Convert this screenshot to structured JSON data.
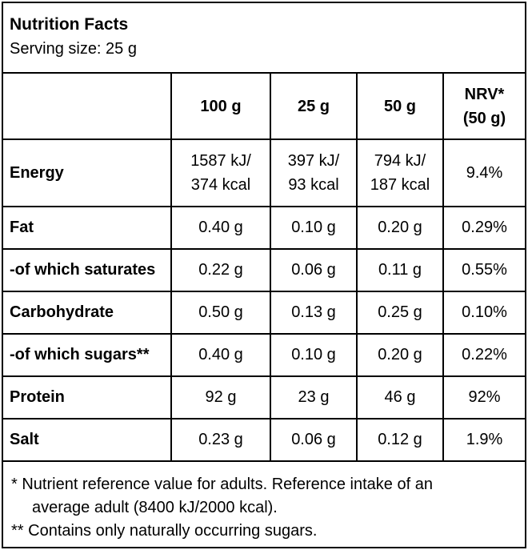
{
  "header": {
    "title": "Nutrition Facts",
    "serving": "Serving size: 25 g"
  },
  "columns": {
    "c1": "100 g",
    "c2": "25 g",
    "c3": "50 g",
    "nrv_line1": "NRV*",
    "nrv_line2": "(50 g)"
  },
  "energy": {
    "label": "Energy",
    "v100_kj": "1587 kJ/",
    "v100_kcal": "374 kcal",
    "v25_kj": "397 kJ/",
    "v25_kcal": "93 kcal",
    "v50_kj": "794 kJ/",
    "v50_kcal": "187 kcal",
    "nrv": "9.4%"
  },
  "rows": {
    "fat": {
      "label": "Fat",
      "v100": "0.40 g",
      "v25": "0.10 g",
      "v50": "0.20 g",
      "nrv": "0.29%"
    },
    "saturates": {
      "label": "-of which saturates",
      "v100": "0.22 g",
      "v25": "0.06 g",
      "v50": "0.11 g",
      "nrv": "0.55%"
    },
    "carbohydrate": {
      "label": "Carbohydrate",
      "v100": "0.50 g",
      "v25": "0.13 g",
      "v50": "0.25 g",
      "nrv": "0.10%"
    },
    "sugars": {
      "label": "-of which sugars**",
      "v100": "0.40 g",
      "v25": "0.10 g",
      "v50": "0.20 g",
      "nrv": "0.22%"
    },
    "protein": {
      "label": "Protein",
      "v100": "92 g",
      "v25": "23 g",
      "v50": "46 g",
      "nrv": "92%"
    },
    "salt": {
      "label": "Salt",
      "v100": "0.23 g",
      "v25": "0.06 g",
      "v50": "0.12 g",
      "nrv": "1.9%"
    }
  },
  "footnotes": {
    "line1": "* Nutrient reference value for adults. Reference intake of an",
    "line2": "average adult (8400 kJ/2000 kcal).",
    "line3": "** Contains only naturally occurring sugars."
  }
}
